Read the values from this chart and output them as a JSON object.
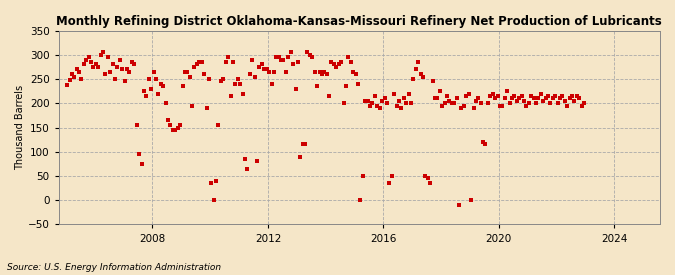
{
  "title": "Monthly Refining District Oklahoma-Kansas-Missouri Refinery Net Production of Lubricants",
  "ylabel": "Thousand Barrels",
  "source": "Source: U.S. Energy Information Administration",
  "background_color": "#f5e6c8",
  "plot_bg_color": "#f5e6c8",
  "marker_color": "#cc0000",
  "marker_size": 9,
  "ylim": [
    -50,
    350
  ],
  "yticks": [
    -50,
    0,
    50,
    100,
    150,
    200,
    250,
    300,
    350
  ],
  "xtick_years": [
    2008,
    2012,
    2016,
    2020,
    2024
  ],
  "title_fontsize": 8.5,
  "start_year": 2005,
  "start_month": 1,
  "values": [
    237,
    248,
    260,
    255,
    270,
    265,
    250,
    280,
    290,
    295,
    285,
    275,
    280,
    275,
    300,
    305,
    260,
    295,
    265,
    280,
    250,
    275,
    290,
    270,
    245,
    270,
    265,
    285,
    280,
    155,
    95,
    75,
    225,
    215,
    250,
    230,
    265,
    250,
    220,
    240,
    235,
    200,
    165,
    155,
    145,
    145,
    150,
    155,
    235,
    265,
    265,
    255,
    195,
    275,
    280,
    285,
    285,
    260,
    190,
    250,
    35,
    0,
    40,
    155,
    245,
    250,
    285,
    295,
    215,
    285,
    240,
    250,
    240,
    220,
    85,
    65,
    260,
    290,
    255,
    80,
    275,
    280,
    270,
    270,
    265,
    240,
    265,
    295,
    295,
    290,
    290,
    265,
    295,
    305,
    280,
    230,
    285,
    90,
    115,
    115,
    305,
    300,
    295,
    265,
    235,
    265,
    260,
    265,
    260,
    215,
    285,
    280,
    275,
    280,
    285,
    200,
    235,
    295,
    285,
    265,
    260,
    240,
    0,
    50,
    205,
    205,
    195,
    200,
    215,
    195,
    190,
    205,
    210,
    200,
    35,
    50,
    220,
    195,
    205,
    190,
    210,
    200,
    220,
    200,
    250,
    270,
    285,
    260,
    255,
    50,
    45,
    35,
    245,
    210,
    210,
    225,
    195,
    200,
    215,
    205,
    200,
    200,
    210,
    -10,
    190,
    195,
    215,
    220,
    0,
    190,
    205,
    210,
    200,
    120,
    115,
    200,
    215,
    220,
    210,
    215,
    195,
    195,
    210,
    225,
    200,
    210,
    215,
    205,
    210,
    215,
    205,
    195,
    200,
    215,
    210,
    200,
    210,
    220,
    205,
    210,
    215,
    200,
    210,
    215,
    200,
    210,
    215,
    205,
    195,
    210,
    215,
    205,
    215,
    210,
    195,
    200
  ]
}
